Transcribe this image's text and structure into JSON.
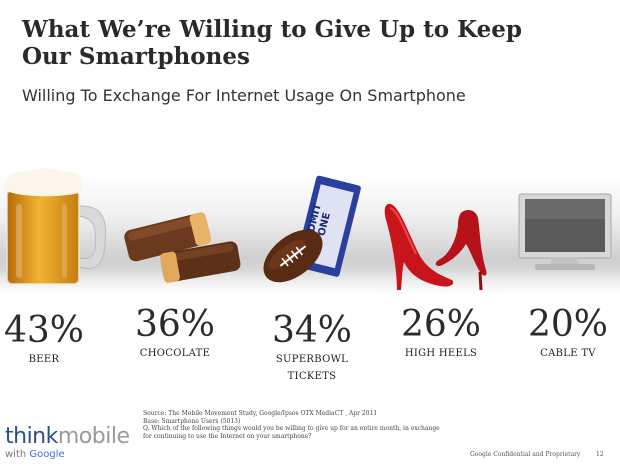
{
  "slide": {
    "title": "What We’re Willing to Give Up to Keep Our Smartphones",
    "subtitle": "Willing To Exchange For Internet Usage On Smartphone"
  },
  "chart_data": {
    "type": "bar",
    "title": "What We’re Willing to Give Up to Keep Our Smartphones",
    "subtitle": "Willing To Exchange For Internet Usage On Smartphone",
    "unit": "%",
    "categories": [
      "BEER",
      "CHOCOLATE",
      "SUPERBOWL TICKETS",
      "HIGH HEELS",
      "CABLE TV"
    ],
    "values": [
      43,
      36,
      34,
      26,
      20
    ],
    "labels": [
      "43%",
      "36%",
      "34%",
      "26%",
      "20%"
    ],
    "label_lines": [
      [
        "BEER"
      ],
      [
        "CHOCOLATE"
      ],
      [
        "SUPERBOWL",
        "TICKETS"
      ],
      [
        "HIGH HEELS"
      ],
      [
        "CABLE TV"
      ]
    ],
    "icons": [
      "beer-mug-icon",
      "chocolate-bar-icon",
      "football-ticket-icon",
      "high-heels-icon",
      "flat-tv-icon"
    ]
  },
  "ticket": {
    "text_top": "ADMIT",
    "text_bottom": "ONE"
  },
  "source": {
    "line1": "Source: The Mobile Movement Study, Google/Ipsos OTX MediaCT , Apr 2011",
    "line2": "Base:    Smartphone Users (5013)",
    "line3": "Q. Which of the following things would you be willing to give up for an entire month, in exchange",
    "line4": "for continuing to use the Internet on your smartphone?"
  },
  "logo": {
    "think": "think",
    "mobile": "mobile",
    "with": "with",
    "google": "Google"
  },
  "footer": {
    "confidential": "Google Confidential and Proprietary",
    "page": "12"
  },
  "colors": {
    "beer": "#e8a020",
    "chocolate": "#6b3a1e",
    "ticket": "#2a3f9e",
    "heels": "#c8141b",
    "tv": "#d4d4d4"
  }
}
